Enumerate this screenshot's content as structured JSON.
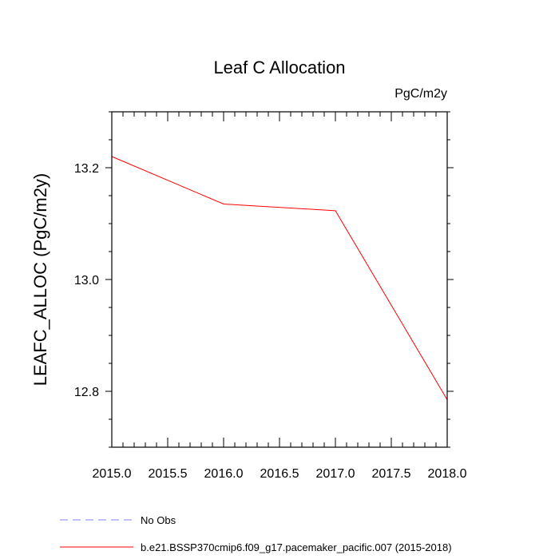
{
  "chart_data": {
    "type": "line",
    "title": "Leaf C Allocation",
    "units_label": "PgC/m2y",
    "xlabel": "",
    "ylabel": "LEAFC_ALLOC  (PgC/m2y)",
    "xlim": [
      2015.0,
      2018.0
    ],
    "ylim": [
      12.7,
      13.3
    ],
    "x_ticks": [
      2015.0,
      2015.5,
      2016.0,
      2016.5,
      2017.0,
      2017.5,
      2018.0
    ],
    "x_tick_labels": [
      "2015.0",
      "2015.5",
      "2016.0",
      "2016.5",
      "2017.0",
      "2017.5",
      "2018.0"
    ],
    "y_ticks": [
      12.8,
      13.0,
      13.2
    ],
    "y_tick_labels": [
      "12.8",
      "13.0",
      "13.2"
    ],
    "series": [
      {
        "name": "b.e21.BSSP370cmip6.f09_g17.pacemaker_pacific.007 (2015-2018)",
        "color": "#ff0000",
        "x": [
          2015.0,
          2016.0,
          2017.0,
          2018.0
        ],
        "y": [
          13.22,
          13.135,
          13.123,
          12.785
        ]
      }
    ],
    "legend": [
      {
        "label": "No Obs",
        "color": "#8080ff",
        "style": "dashed"
      },
      {
        "label": "b.e21.BSSP370cmip6.f09_g17.pacemaker_pacific.007 (2015-2018)",
        "color": "#ff0000",
        "style": "solid"
      }
    ]
  }
}
